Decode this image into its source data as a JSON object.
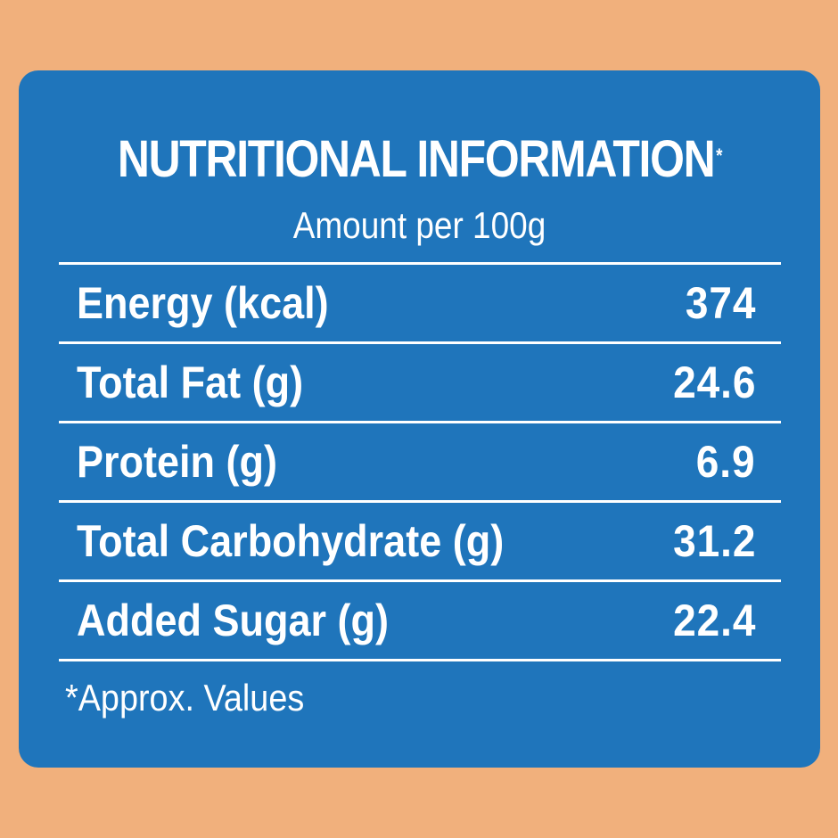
{
  "label": {
    "title": "NUTRITIONAL INFORMATION",
    "title_mark": "*",
    "subtitle": "Amount per 100g",
    "rows": [
      {
        "name": "Energy (kcal)",
        "value": "374"
      },
      {
        "name": "Total Fat (g)",
        "value": "24.6"
      },
      {
        "name": "Protein (g)",
        "value": "6.9"
      },
      {
        "name": "Total Carbohydrate (g)",
        "value": "31.2"
      },
      {
        "name": "Added Sugar (g)",
        "value": "22.4"
      }
    ],
    "footnote": "*Approx. Values"
  },
  "colors": {
    "background": "#f1b07c",
    "panel": "#1f75bb",
    "text": "#ffffff"
  }
}
